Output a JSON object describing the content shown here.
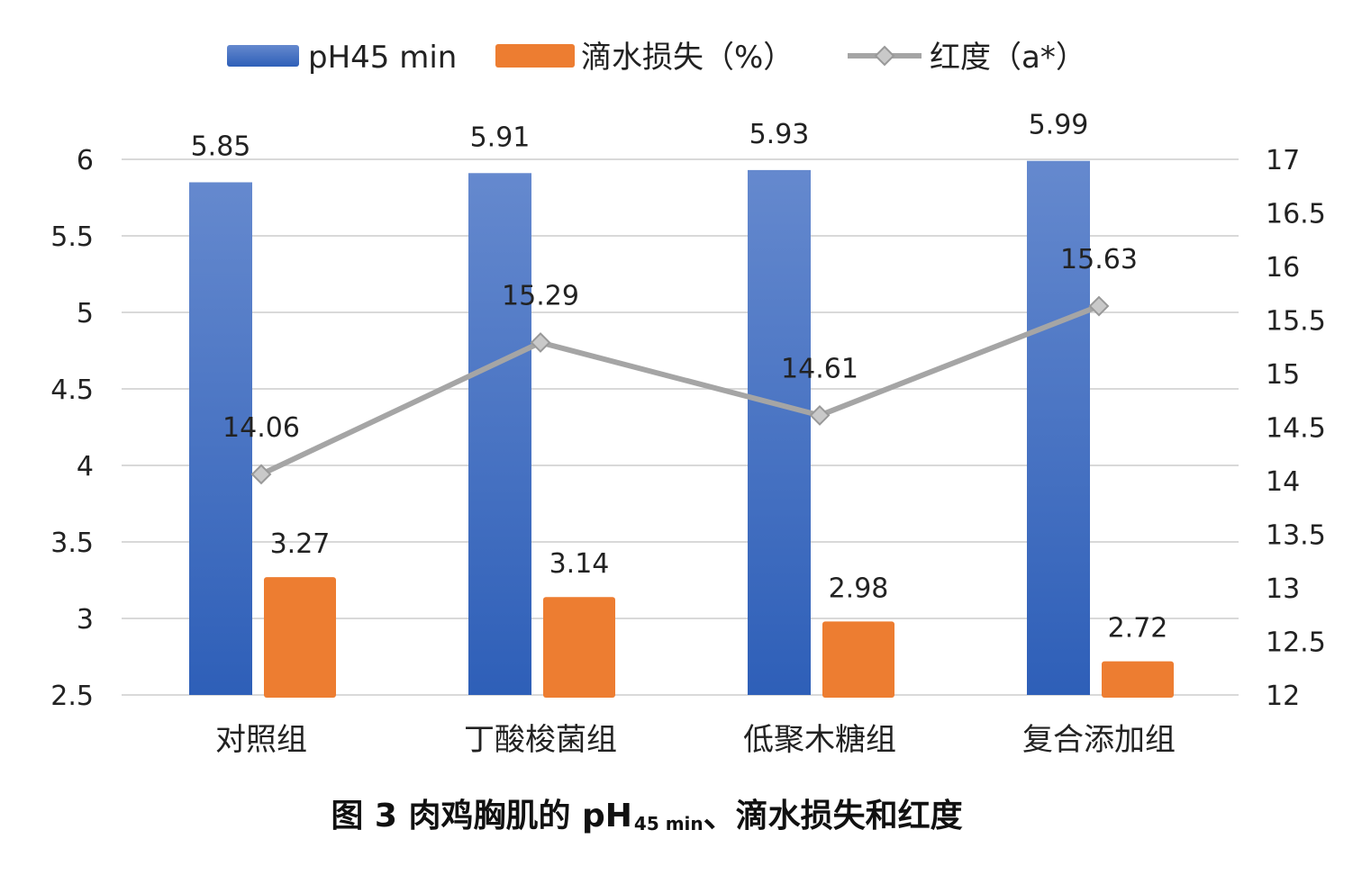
{
  "chart_data": {
    "type": "bar",
    "categories": [
      "对照组",
      "丁酸梭菌组",
      "低聚木糖组",
      "复合添加组"
    ],
    "series": [
      {
        "name": "pH45 min",
        "type": "bar",
        "axis": "left",
        "color": "#4472C4",
        "values": [
          5.85,
          5.91,
          5.93,
          5.99
        ]
      },
      {
        "name": "滴水损失（%）",
        "type": "bar",
        "axis": "left",
        "color": "#ED7D31",
        "values": [
          3.27,
          3.14,
          2.98,
          2.72
        ]
      },
      {
        "name": "红度（a*）",
        "type": "line",
        "axis": "right",
        "color": "#A5A5A5",
        "values": [
          14.06,
          15.29,
          14.61,
          15.63
        ]
      }
    ],
    "y_left": {
      "lim": [
        2.5,
        6
      ],
      "ticks": [
        "2.5",
        "3",
        "3.5",
        "4",
        "4.5",
        "5",
        "5.5",
        "6"
      ]
    },
    "y_right": {
      "lim": [
        12,
        17
      ],
      "ticks": [
        "12",
        "12.5",
        "13",
        "13.5",
        "14",
        "14.5",
        "15",
        "15.5",
        "16",
        "16.5",
        "17"
      ]
    },
    "grid": true,
    "legend_position": "top",
    "caption": {
      "main_prefix": "图 3 肉鸡胸肌的 pH",
      "subscript": "45 min",
      "main_suffix": "、滴水损失和红度"
    }
  }
}
